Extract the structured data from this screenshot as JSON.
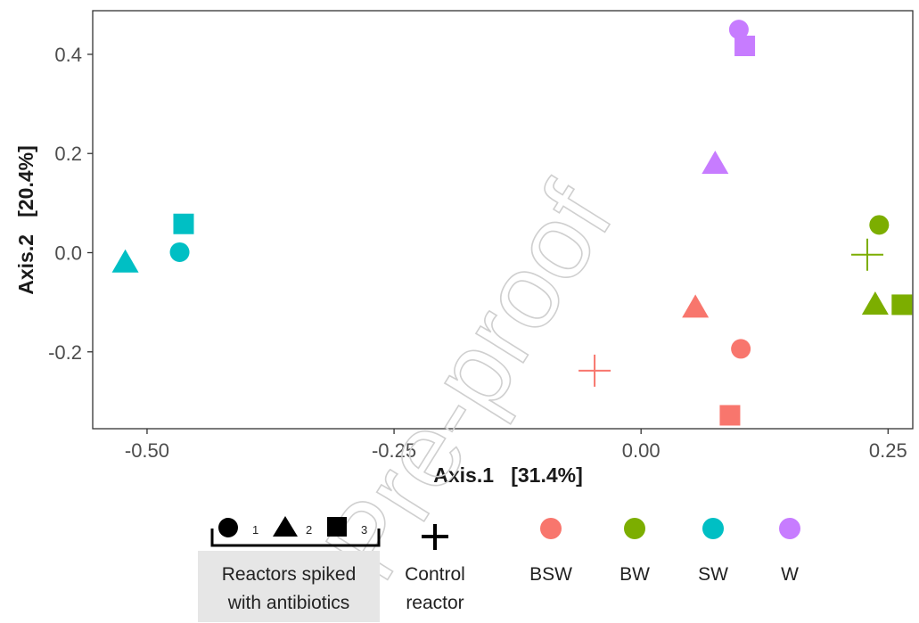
{
  "chart_data": {
    "type": "scatter",
    "xlabel": "Axis.1   [31.4%]",
    "ylabel": "Axis.2   [20.4%]",
    "xlim": [
      -0.555,
      0.275
    ],
    "ylim": [
      -0.355,
      0.488
    ],
    "xticks": [
      -0.5,
      -0.25,
      0.0,
      0.25
    ],
    "xtick_labels": [
      "-0.50",
      "-0.25",
      "0.00",
      "0.25"
    ],
    "yticks": [
      -0.2,
      0.0,
      0.2,
      0.4
    ],
    "ytick_labels": [
      "-0.2",
      "0.0",
      "0.2",
      "0.4"
    ],
    "grid": false,
    "legend_position": "bottom",
    "groups": [
      {
        "name": "BSW",
        "color": "#f8766d"
      },
      {
        "name": "BW",
        "color": "#7cae00"
      },
      {
        "name": "SW",
        "color": "#00bfc4"
      },
      {
        "name": "W",
        "color": "#c77cff"
      }
    ],
    "points": [
      {
        "group": "SW",
        "reactor": "2",
        "shape": "triangle",
        "x": -0.522,
        "y": -0.022
      },
      {
        "group": "SW",
        "reactor": "1",
        "shape": "circle",
        "x": -0.467,
        "y": 0.001
      },
      {
        "group": "SW",
        "reactor": "3",
        "shape": "square",
        "x": -0.463,
        "y": 0.058
      },
      {
        "group": "W",
        "reactor": "1",
        "shape": "circle",
        "x": 0.099,
        "y": 0.45
      },
      {
        "group": "W",
        "reactor": "3",
        "shape": "square",
        "x": 0.105,
        "y": 0.417
      },
      {
        "group": "W",
        "reactor": "2",
        "shape": "triangle",
        "x": 0.075,
        "y": 0.177
      },
      {
        "group": "BW",
        "reactor": "1",
        "shape": "circle",
        "x": 0.241,
        "y": 0.056
      },
      {
        "group": "BW",
        "reactor": "control",
        "shape": "plus",
        "x": 0.229,
        "y": -0.004
      },
      {
        "group": "BW",
        "reactor": "2",
        "shape": "triangle",
        "x": 0.237,
        "y": -0.107
      },
      {
        "group": "BW",
        "reactor": "3",
        "shape": "square",
        "x": 0.264,
        "y": -0.105
      },
      {
        "group": "BSW",
        "reactor": "2",
        "shape": "triangle",
        "x": 0.055,
        "y": -0.113
      },
      {
        "group": "BSW",
        "reactor": "1",
        "shape": "circle",
        "x": 0.101,
        "y": -0.194
      },
      {
        "group": "BSW",
        "reactor": "control",
        "shape": "plus",
        "x": -0.047,
        "y": -0.238
      },
      {
        "group": "BSW",
        "reactor": "3",
        "shape": "square",
        "x": 0.09,
        "y": -0.328
      }
    ]
  },
  "legend": {
    "shapes": [
      {
        "shape": "circle",
        "label": "1"
      },
      {
        "shape": "triangle",
        "label": "2"
      },
      {
        "shape": "square",
        "label": "3"
      }
    ],
    "spiked_label_line1": "Reactors spiked",
    "spiked_label_line2": "with antibiotics",
    "control_line1": "Control",
    "control_line2": "reactor",
    "groups": [
      "BSW",
      "BW",
      "SW",
      "W"
    ]
  },
  "watermark": "Pre-proof"
}
